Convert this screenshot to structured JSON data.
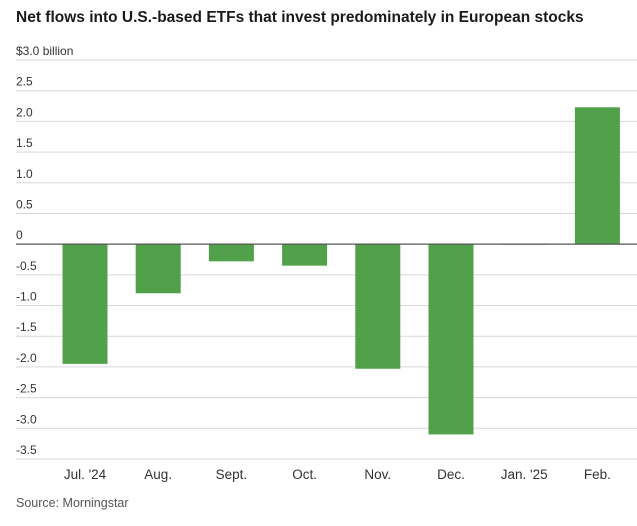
{
  "title": "Net flows into U.S.-based ETFs that invest predominately in European stocks",
  "source": "Source: Morningstar",
  "colors": {
    "bar": "#51a14a",
    "grid": "#d7d7d7",
    "zero_line": "#555555"
  },
  "chart_data": {
    "type": "bar",
    "title": "Net flows into U.S.-based ETFs that invest predominately in European stocks",
    "xlabel": "",
    "ylabel": "",
    "ylim": [
      -3.5,
      3.0
    ],
    "y_ticks": [
      3.0,
      2.5,
      2.0,
      1.5,
      1.0,
      0.5,
      0,
      -0.5,
      -1.0,
      -1.5,
      -2.0,
      -2.5,
      -3.0,
      -3.5
    ],
    "y_tick_labels": [
      "$3.0 billion",
      "2.5",
      "2.0",
      "1.5",
      "1.0",
      "0.5",
      "0",
      "-0.5",
      "-1.0",
      "-1.5",
      "-2.0",
      "-2.5",
      "-3.0",
      "-3.5"
    ],
    "categories": [
      "Jul. '24",
      "Aug.",
      "Sept.",
      "Oct.",
      "Nov.",
      "Dec.",
      "Jan. '25",
      "Feb."
    ],
    "values": [
      -1.95,
      -0.8,
      -0.28,
      -0.35,
      -2.03,
      -3.1,
      0.01,
      2.23
    ],
    "grid": true,
    "legend": "none"
  }
}
